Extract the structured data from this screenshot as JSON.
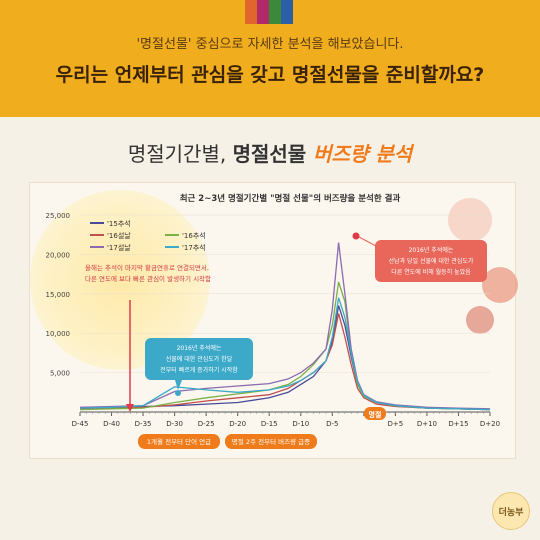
{
  "header": {
    "subtitle": "'명절선물' 중심으로 자세한 분석을 해보았습니다.",
    "headline": "우리는 언제부터 관심을 갖고 명절선물을 준비할까요?"
  },
  "section": {
    "title_part1": "명절기간별, ",
    "title_part2": "명절선물 ",
    "title_part3": "버즈량 분석"
  },
  "colors": {
    "header_bg": "#f0ad1e",
    "accent": "#f07b1a",
    "s15chuseok": "#4a4a9a",
    "s16seollal": "#c0504d",
    "s16chuseok": "#7ab04a",
    "s17seollal": "#8a6bb0",
    "s17chuseok": "#3ca9c8"
  },
  "chart_data": {
    "type": "line",
    "title": "최근 2~3년 명절기간별 \"명절 선물\"의 버즈량을 분석한 결과",
    "x_ticks": [
      "D-45",
      "D-40",
      "D-35",
      "D-30",
      "D-25",
      "D-20",
      "D-15",
      "D-10",
      "D-5",
      "명절",
      "D+5",
      "D+10",
      "D+15",
      "D+20"
    ],
    "xlim": [
      -45,
      20
    ],
    "ylim": [
      0,
      25000
    ],
    "y_ticks": [
      "25,000",
      "20,000",
      "15,000",
      "10,000",
      "5,000"
    ],
    "series": [
      {
        "name": "'15추석",
        "x": [
          -45,
          -40,
          -35,
          -30,
          -25,
          -20,
          -15,
          -12,
          -10,
          -8,
          -6,
          -5,
          -4,
          -3,
          -2,
          -1,
          0,
          2,
          5,
          10,
          15,
          20
        ],
        "values": [
          500,
          600,
          700,
          800,
          1000,
          1200,
          1800,
          2500,
          3500,
          4500,
          6500,
          9000,
          13500,
          11000,
          7000,
          3500,
          2000,
          1200,
          800,
          500,
          400,
          300
        ]
      },
      {
        "name": "'16설날",
        "x": [
          -45,
          -40,
          -35,
          -30,
          -25,
          -20,
          -15,
          -12,
          -10,
          -8,
          -6,
          -5,
          -4,
          -3,
          -2,
          -1,
          0,
          2,
          5,
          10,
          15,
          20
        ],
        "values": [
          400,
          500,
          600,
          900,
          1400,
          1800,
          2200,
          3000,
          4000,
          5000,
          6500,
          8500,
          12500,
          9500,
          6000,
          3000,
          1800,
          1000,
          700,
          500,
          400,
          300
        ]
      },
      {
        "name": "'16추석",
        "x": [
          -45,
          -40,
          -35,
          -30,
          -25,
          -20,
          -15,
          -12,
          -10,
          -8,
          -6,
          -5,
          -4,
          -3,
          -2,
          -1,
          0,
          2,
          5,
          10,
          15,
          20
        ],
        "values": [
          300,
          400,
          500,
          1200,
          1800,
          2300,
          2800,
          3500,
          4500,
          6000,
          8000,
          11000,
          16500,
          14000,
          7500,
          3500,
          2000,
          1200,
          800,
          500,
          400,
          300
        ]
      },
      {
        "name": "'17설날",
        "x": [
          -45,
          -40,
          -35,
          -30,
          -25,
          -20,
          -15,
          -12,
          -10,
          -8,
          -6,
          -5,
          -4,
          -3,
          -2,
          -1,
          0,
          2,
          5,
          10,
          15,
          20
        ],
        "values": [
          600,
          700,
          800,
          2600,
          3000,
          3300,
          3600,
          4200,
          5000,
          6200,
          8000,
          13000,
          21500,
          15000,
          8000,
          4000,
          2200,
          1300,
          900,
          600,
          500,
          400
        ]
      },
      {
        "name": "'17추석",
        "x": [
          -45,
          -40,
          -35,
          -30,
          -25,
          -20,
          -15,
          -12,
          -10,
          -8,
          -6,
          -5,
          -4,
          -3,
          -2,
          -1,
          0,
          2,
          5,
          10,
          15,
          20
        ],
        "values": [
          500,
          600,
          800,
          3200,
          2800,
          2500,
          2800,
          3300,
          4000,
          5000,
          6500,
          9500,
          14500,
          12000,
          7500,
          3800,
          2100,
          1200,
          800,
          500,
          400,
          300
        ]
      }
    ],
    "annotations": {
      "left": "올해는 추석이 마지막 황금연휴로 연결되면서, 다른 연도에 보다 빠른 관심이 발생하기 시작함",
      "middle": "2016년 추석에는 선물에 대한 관심도가 한달 전부터 빠르게 증가하기 시작함",
      "right": "2016년 추석에는 선남과 당일 선물에 대한 관심도가 다른 연도에 비해 월등히 높았음",
      "bottom1": "1개월 전부터 단어 언급",
      "bottom2": "명절 2주 전부터 버즈량 급증",
      "holiday_marker": "명절"
    },
    "legend_placement": "top-left",
    "grid": false
  },
  "logo": {
    "text": "더농부"
  }
}
